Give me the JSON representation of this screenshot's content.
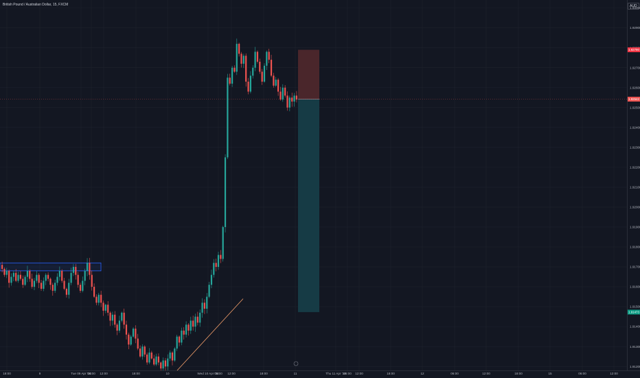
{
  "header": {
    "symbol_title": "British Pound / Australian Dollar, 15, FXCM",
    "currency": "AUD"
  },
  "colors": {
    "background": "#131722",
    "grid": "#1e222d",
    "up_candle": "#26a69a",
    "down_candle": "#ef5350",
    "stop_zone": "#4a262b",
    "target_zone": "#163b45",
    "trendline": "#f5a06b",
    "zone_box": "#2962ff",
    "stop_label": "#f23645",
    "target_label": "#089981"
  },
  "chart_data": {
    "type": "candlestick",
    "instrument": "British Pound / Australian Dollar",
    "timeframe": "15",
    "source": "FXCM",
    "y_axis": {
      "ticks": [
        "1.93000",
        "1.92900",
        "1.92800",
        "1.92700",
        "1.92600",
        "1.92500",
        "1.92400",
        "1.92300",
        "1.92200",
        "1.92100",
        "1.92000",
        "1.91900",
        "1.91800",
        "1.91700",
        "1.91600",
        "1.91500",
        "1.91400",
        "1.91300",
        "1.91200"
      ],
      "ylim": [
        1.9118,
        1.9304
      ]
    },
    "x_axis": {
      "ticks": [
        "18:00",
        "9",
        "Tue 09 Apr '24",
        "06:00",
        "12:00",
        "18:00",
        "10",
        "Wed 10 Apr '24",
        "06:00",
        "12:00",
        "18:00",
        "11",
        "Thu 11 Apr '24",
        "06:00",
        "12:00",
        "18:00",
        "12",
        "06:00",
        "12:00",
        "18:00",
        "15",
        "06:00",
        "12:00"
      ]
    },
    "price_labels": {
      "stop": "1.92790",
      "current": "1.92542",
      "target": "1.91473"
    },
    "position_tool": {
      "side": "short",
      "entry": 1.92542,
      "stop": 1.9279,
      "target": 1.91473
    },
    "zone": {
      "top": 1.9172,
      "bottom": 1.9168
    },
    "trendline": {
      "start": 1.9118,
      "end": 1.9154
    },
    "closes": [
      1.9169,
      1.9166,
      1.9168,
      1.9162,
      1.9165,
      1.9167,
      1.9163,
      1.9166,
      1.9164,
      1.9161,
      1.9165,
      1.9168,
      1.9164,
      1.916,
      1.9163,
      1.9166,
      1.9162,
      1.9159,
      1.9163,
      1.9166,
      1.9164,
      1.9161,
      1.9158,
      1.9162,
      1.9165,
      1.9168,
      1.9163,
      1.9159,
      1.9156,
      1.9162,
      1.9167,
      1.917,
      1.9166,
      1.9161,
      1.9158,
      1.9163,
      1.9168,
      1.9172,
      1.9166,
      1.916,
      1.9155,
      1.9152,
      1.9156,
      1.9152,
      1.9148,
      1.9151,
      1.9147,
      1.9143,
      1.9146,
      1.9141,
      1.9138,
      1.9143,
      1.9147,
      1.9141,
      1.9136,
      1.9131,
      1.9135,
      1.9139,
      1.9134,
      1.9129,
      1.9125,
      1.913,
      1.9126,
      1.9122,
      1.9127,
      1.9124,
      1.9121,
      1.9125,
      1.9122,
      1.9119,
      1.9123,
      1.912,
      1.9124,
      1.9127,
      1.9123,
      1.9129,
      1.9135,
      1.9132,
      1.9138,
      1.9136,
      1.9141,
      1.9138,
      1.9143,
      1.914,
      1.9145,
      1.9142,
      1.9147,
      1.9152,
      1.9149,
      1.9155,
      1.9161,
      1.9166,
      1.9172,
      1.917,
      1.9176,
      1.9174,
      1.919,
      1.9225,
      1.9265,
      1.9262,
      1.927,
      1.9268,
      1.9282,
      1.9277,
      1.9272,
      1.9276,
      1.9263,
      1.9258,
      1.9266,
      1.927,
      1.9278,
      1.9273,
      1.9268,
      1.9263,
      1.9271,
      1.9278,
      1.9274,
      1.9266,
      1.9261,
      1.9264,
      1.9258,
      1.9254,
      1.926,
      1.9256,
      1.925,
      1.9255,
      1.9253,
      1.9256,
      1.9254
    ]
  }
}
